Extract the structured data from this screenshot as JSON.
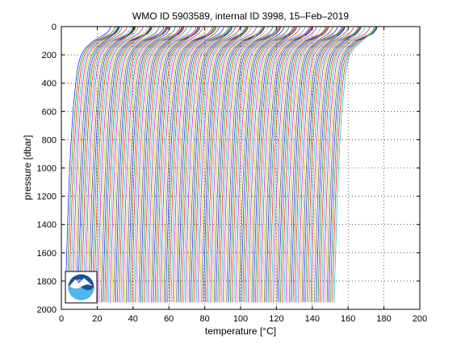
{
  "chart_data": {
    "type": "line",
    "title": "WMO ID 5903589, internal ID 3998, 15–Feb–2019",
    "xlabel": "temperature [°C]",
    "ylabel": "pressure [dbar]",
    "xlim": [
      0,
      200
    ],
    "ylim": [
      0,
      2000
    ],
    "y_reversed": true,
    "grid": true,
    "grid_style": "dotted",
    "xticks": [
      "0",
      "20",
      "40",
      "60",
      "80",
      "100",
      "120",
      "140",
      "160",
      "180",
      "200"
    ],
    "yticks": [
      "0",
      "200",
      "400",
      "600",
      "800",
      "1000",
      "1200",
      "1400",
      "1600",
      "1800",
      "2000"
    ],
    "series_colors": [
      "#0000ff",
      "#008000",
      "#ff0000",
      "#00bfbf",
      "#bf00bf",
      "#bfbf00",
      "#404040"
    ],
    "profile_count": 151,
    "profile_offset_step": 1.0,
    "representative_profile": {
      "pressure": [
        0,
        20,
        50,
        100,
        150,
        200,
        250,
        300,
        400,
        600,
        800,
        1000,
        1200,
        1400,
        1600,
        1800,
        1950
      ],
      "temperature": [
        27.5,
        27.0,
        25.0,
        18.0,
        13.5,
        11.0,
        9.8,
        9.0,
        8.0,
        6.5,
        5.5,
        4.7,
        4.0,
        3.5,
        3.0,
        2.5,
        2.3
      ]
    },
    "logo": "NOAA"
  }
}
